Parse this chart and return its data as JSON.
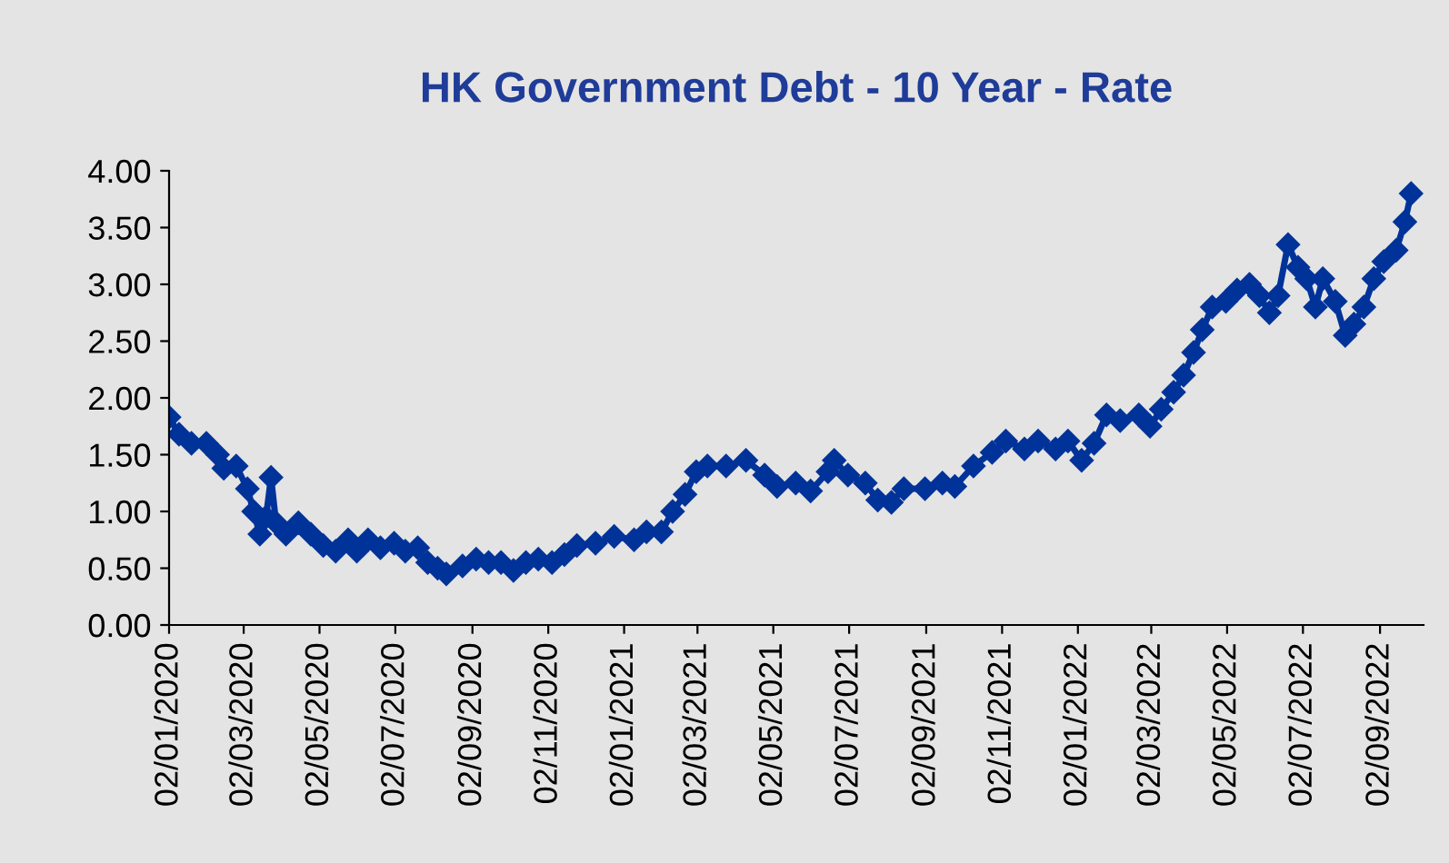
{
  "chart_data": {
    "type": "line",
    "title": "HK Government Debt - 10 Year - Rate",
    "marker": "diamond",
    "grid": false,
    "legend": false,
    "xlim": [
      "2020-01-02",
      "2022-10-07"
    ],
    "xticks": [
      {
        "value": "2020-01-02",
        "label": "02/01/2020"
      },
      {
        "value": "2020-03-02",
        "label": "02/03/2020"
      },
      {
        "value": "2020-05-02",
        "label": "02/05/2020"
      },
      {
        "value": "2020-07-02",
        "label": "02/07/2020"
      },
      {
        "value": "2020-09-02",
        "label": "02/09/2020"
      },
      {
        "value": "2020-11-02",
        "label": "02/11/2020"
      },
      {
        "value": "2021-01-02",
        "label": "02/01/2021"
      },
      {
        "value": "2021-03-02",
        "label": "02/03/2021"
      },
      {
        "value": "2021-05-02",
        "label": "02/05/2021"
      },
      {
        "value": "2021-07-02",
        "label": "02/07/2021"
      },
      {
        "value": "2021-09-02",
        "label": "02/09/2021"
      },
      {
        "value": "2021-11-02",
        "label": "02/11/2021"
      },
      {
        "value": "2022-01-02",
        "label": "02/01/2022"
      },
      {
        "value": "2022-03-02",
        "label": "02/03/2022"
      },
      {
        "value": "2022-05-02",
        "label": "02/05/2022"
      },
      {
        "value": "2022-07-02",
        "label": "02/07/2022"
      },
      {
        "value": "2022-09-02",
        "label": "02/09/2022"
      }
    ],
    "ylim": [
      0,
      4
    ],
    "yticks": [
      {
        "value": 0,
        "label": "0.00"
      },
      {
        "value": 0.5,
        "label": "0.50"
      },
      {
        "value": 1,
        "label": "1.00"
      },
      {
        "value": 1.5,
        "label": "1.50"
      },
      {
        "value": 2,
        "label": "2.00"
      },
      {
        "value": 2.5,
        "label": "2.50"
      },
      {
        "value": 3,
        "label": "3.00"
      },
      {
        "value": 3.5,
        "label": "3.50"
      },
      {
        "value": 4,
        "label": "4.00"
      }
    ],
    "x": [
      "2020-01-02",
      "2020-01-10",
      "2020-01-20",
      "2020-02-01",
      "2020-02-10",
      "2020-02-15",
      "2020-02-25",
      "2020-03-05",
      "2020-03-10",
      "2020-03-15",
      "2020-03-20",
      "2020-03-24",
      "2020-03-28",
      "2020-04-05",
      "2020-04-15",
      "2020-04-25",
      "2020-05-05",
      "2020-05-15",
      "2020-05-25",
      "2020-06-01",
      "2020-06-10",
      "2020-06-20",
      "2020-07-01",
      "2020-07-10",
      "2020-07-20",
      "2020-07-28",
      "2020-08-05",
      "2020-08-12",
      "2020-08-25",
      "2020-09-05",
      "2020-09-15",
      "2020-09-25",
      "2020-10-05",
      "2020-10-15",
      "2020-10-25",
      "2020-11-05",
      "2020-11-15",
      "2020-11-25",
      "2020-12-10",
      "2020-12-25",
      "2021-01-10",
      "2021-01-20",
      "2021-02-01",
      "2021-02-10",
      "2021-02-20",
      "2021-03-01",
      "2021-03-10",
      "2021-03-25",
      "2021-04-10",
      "2021-04-25",
      "2021-05-05",
      "2021-05-20",
      "2021-06-01",
      "2021-06-15",
      "2021-06-20",
      "2021-07-01",
      "2021-07-15",
      "2021-07-25",
      "2021-08-05",
      "2021-08-15",
      "2021-09-01",
      "2021-09-15",
      "2021-09-25",
      "2021-10-10",
      "2021-10-25",
      "2021-11-05",
      "2021-11-20",
      "2021-12-01",
      "2021-12-15",
      "2021-12-25",
      "2022-01-05",
      "2022-01-15",
      "2022-01-25",
      "2022-02-05",
      "2022-02-20",
      "2022-03-01",
      "2022-03-10",
      "2022-03-20",
      "2022-03-28",
      "2022-04-05",
      "2022-04-12",
      "2022-04-20",
      "2022-05-01",
      "2022-05-10",
      "2022-05-20",
      "2022-05-28",
      "2022-06-05",
      "2022-06-12",
      "2022-06-20",
      "2022-06-28",
      "2022-07-05",
      "2022-07-12",
      "2022-07-18",
      "2022-07-28",
      "2022-08-05",
      "2022-08-12",
      "2022-08-20",
      "2022-08-28",
      "2022-09-05",
      "2022-09-15",
      "2022-09-22",
      "2022-09-27"
    ],
    "series": [
      {
        "color": "#003399",
        "values": [
          1.83,
          1.68,
          1.6,
          1.6,
          1.5,
          1.38,
          1.4,
          1.2,
          1.0,
          0.8,
          0.95,
          1.3,
          0.9,
          0.8,
          0.9,
          0.8,
          0.7,
          0.65,
          0.75,
          0.65,
          0.75,
          0.68,
          0.72,
          0.65,
          0.68,
          0.55,
          0.5,
          0.45,
          0.52,
          0.58,
          0.55,
          0.55,
          0.48,
          0.55,
          0.58,
          0.55,
          0.62,
          0.7,
          0.72,
          0.78,
          0.75,
          0.82,
          0.82,
          1.0,
          1.15,
          1.35,
          1.4,
          1.4,
          1.45,
          1.32,
          1.22,
          1.25,
          1.18,
          1.35,
          1.45,
          1.32,
          1.25,
          1.1,
          1.08,
          1.2,
          1.2,
          1.25,
          1.22,
          1.4,
          1.52,
          1.62,
          1.55,
          1.62,
          1.55,
          1.62,
          1.45,
          1.6,
          1.85,
          1.8,
          1.85,
          1.75,
          1.9,
          2.05,
          2.2,
          2.4,
          2.6,
          2.8,
          2.85,
          2.95,
          3.0,
          2.9,
          2.75,
          2.9,
          3.35,
          3.15,
          3.05,
          2.8,
          3.05,
          2.85,
          2.55,
          2.65,
          2.8,
          3.05,
          3.2,
          3.3,
          3.55,
          3.8
        ]
      }
    ]
  }
}
